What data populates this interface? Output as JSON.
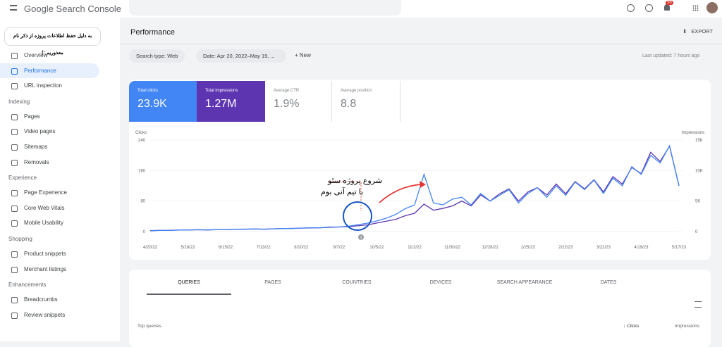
{
  "header": {
    "product": "Google Search Console",
    "notification_count": "56"
  },
  "sidebar": {
    "note": "به دلیل حفظ اطلاعات پروژه از ذکر نام معذوریم :)",
    "items": [
      {
        "label": "Overview"
      },
      {
        "label": "Performance"
      },
      {
        "label": "URL inspection"
      },
      {
        "section": "Indexing"
      },
      {
        "label": "Pages"
      },
      {
        "label": "Video pages"
      },
      {
        "label": "Sitemaps"
      },
      {
        "label": "Removals"
      },
      {
        "section": "Experience"
      },
      {
        "label": "Page Experience"
      },
      {
        "label": "Core Web Vitals"
      },
      {
        "label": "Mobile Usability"
      },
      {
        "section": "Shopping"
      },
      {
        "label": "Product snippets"
      },
      {
        "label": "Merchant listings"
      },
      {
        "section": "Enhancements"
      },
      {
        "label": "Breadcrumbs"
      },
      {
        "label": "Review snippets"
      }
    ]
  },
  "page": {
    "title": "Performance",
    "export": "EXPORT",
    "filters": [
      "Search type: Web",
      "Date: Apr 20, 2022–May 19, ..."
    ],
    "new": "New",
    "last_updated": "Last updated: 7 hours ago"
  },
  "metrics": [
    {
      "label": "Total clicks",
      "value": "23.9K"
    },
    {
      "label": "Total impressions",
      "value": "1.27M"
    },
    {
      "label": "Average CTR",
      "value": "1.9%"
    },
    {
      "label": "Average position",
      "value": "8.8"
    }
  ],
  "chart_data": {
    "type": "line",
    "ylabel": "Clicks",
    "y2label": "Impressions",
    "ylim": [
      0,
      240
    ],
    "yticks": [
      0,
      80,
      160,
      240
    ],
    "y2lim": [
      0,
      15000
    ],
    "y2ticks": [
      0,
      {
        "value": 5000,
        "label": "5K"
      },
      {
        "value": 10000,
        "label": "10K"
      },
      {
        "value": 15000,
        "label": "15K"
      }
    ],
    "categories": [
      "4/20/22",
      null,
      null,
      null,
      "5/18/22",
      null,
      null,
      null,
      "6/15/22",
      null,
      null,
      null,
      "7/13/22",
      null,
      null,
      null,
      "8/10/22",
      null,
      null,
      null,
      "9/7/22",
      null,
      null,
      null,
      "10/5/22",
      null,
      null,
      null,
      "11/2/22",
      null,
      null,
      null,
      "11/30/22",
      null,
      null,
      null,
      "12/28/22",
      null,
      null,
      null,
      "1/25/23",
      null,
      null,
      null,
      "2/22/23",
      null,
      null,
      null,
      "3/22/23",
      null,
      null,
      null,
      "4/19/23",
      null,
      null,
      null,
      "5/17/23"
    ],
    "series": [
      {
        "color": "#4285f4",
        "values": [
          2,
          3,
          3,
          4,
          4,
          5,
          4,
          5,
          5,
          6,
          6,
          7,
          6,
          7,
          8,
          8,
          9,
          10,
          10,
          12,
          12,
          14,
          18,
          22,
          28,
          35,
          45,
          60,
          70,
          150,
          75,
          70,
          85,
          90,
          70,
          100,
          80,
          95,
          110,
          75,
          100,
          115,
          90,
          120,
          95,
          130,
          110,
          135,
          100,
          140,
          120,
          170,
          150,
          200,
          180,
          225,
          120
        ]
      },
      {
        "color": "#5e35b1",
        "axis": "y2",
        "values": [
          150,
          200,
          200,
          250,
          250,
          300,
          280,
          320,
          330,
          380,
          400,
          420,
          400,
          450,
          500,
          520,
          560,
          600,
          620,
          700,
          750,
          800,
          950,
          1100,
          1400,
          1700,
          2000,
          2600,
          3000,
          4500,
          3500,
          3800,
          4200,
          5000,
          4200,
          6000,
          5000,
          6200,
          7000,
          5000,
          6500,
          7200,
          6000,
          7800,
          6200,
          8200,
          7000,
          8500,
          6500,
          9000,
          7800,
          10500,
          9500,
          13000,
          11500,
          14000,
          7500
        ]
      }
    ],
    "annotations": [
      "شروع پروژه سئو",
      "با تیم آنی بوم",
      "1"
    ]
  },
  "tabs": [
    "QUERIES",
    "PAGES",
    "COUNTRIES",
    "DEVICES",
    "SEARCH APPEARANCE",
    "DATES"
  ],
  "table": {
    "title": "Top queries",
    "columns": [
      "Clicks",
      "Impressions"
    ]
  }
}
